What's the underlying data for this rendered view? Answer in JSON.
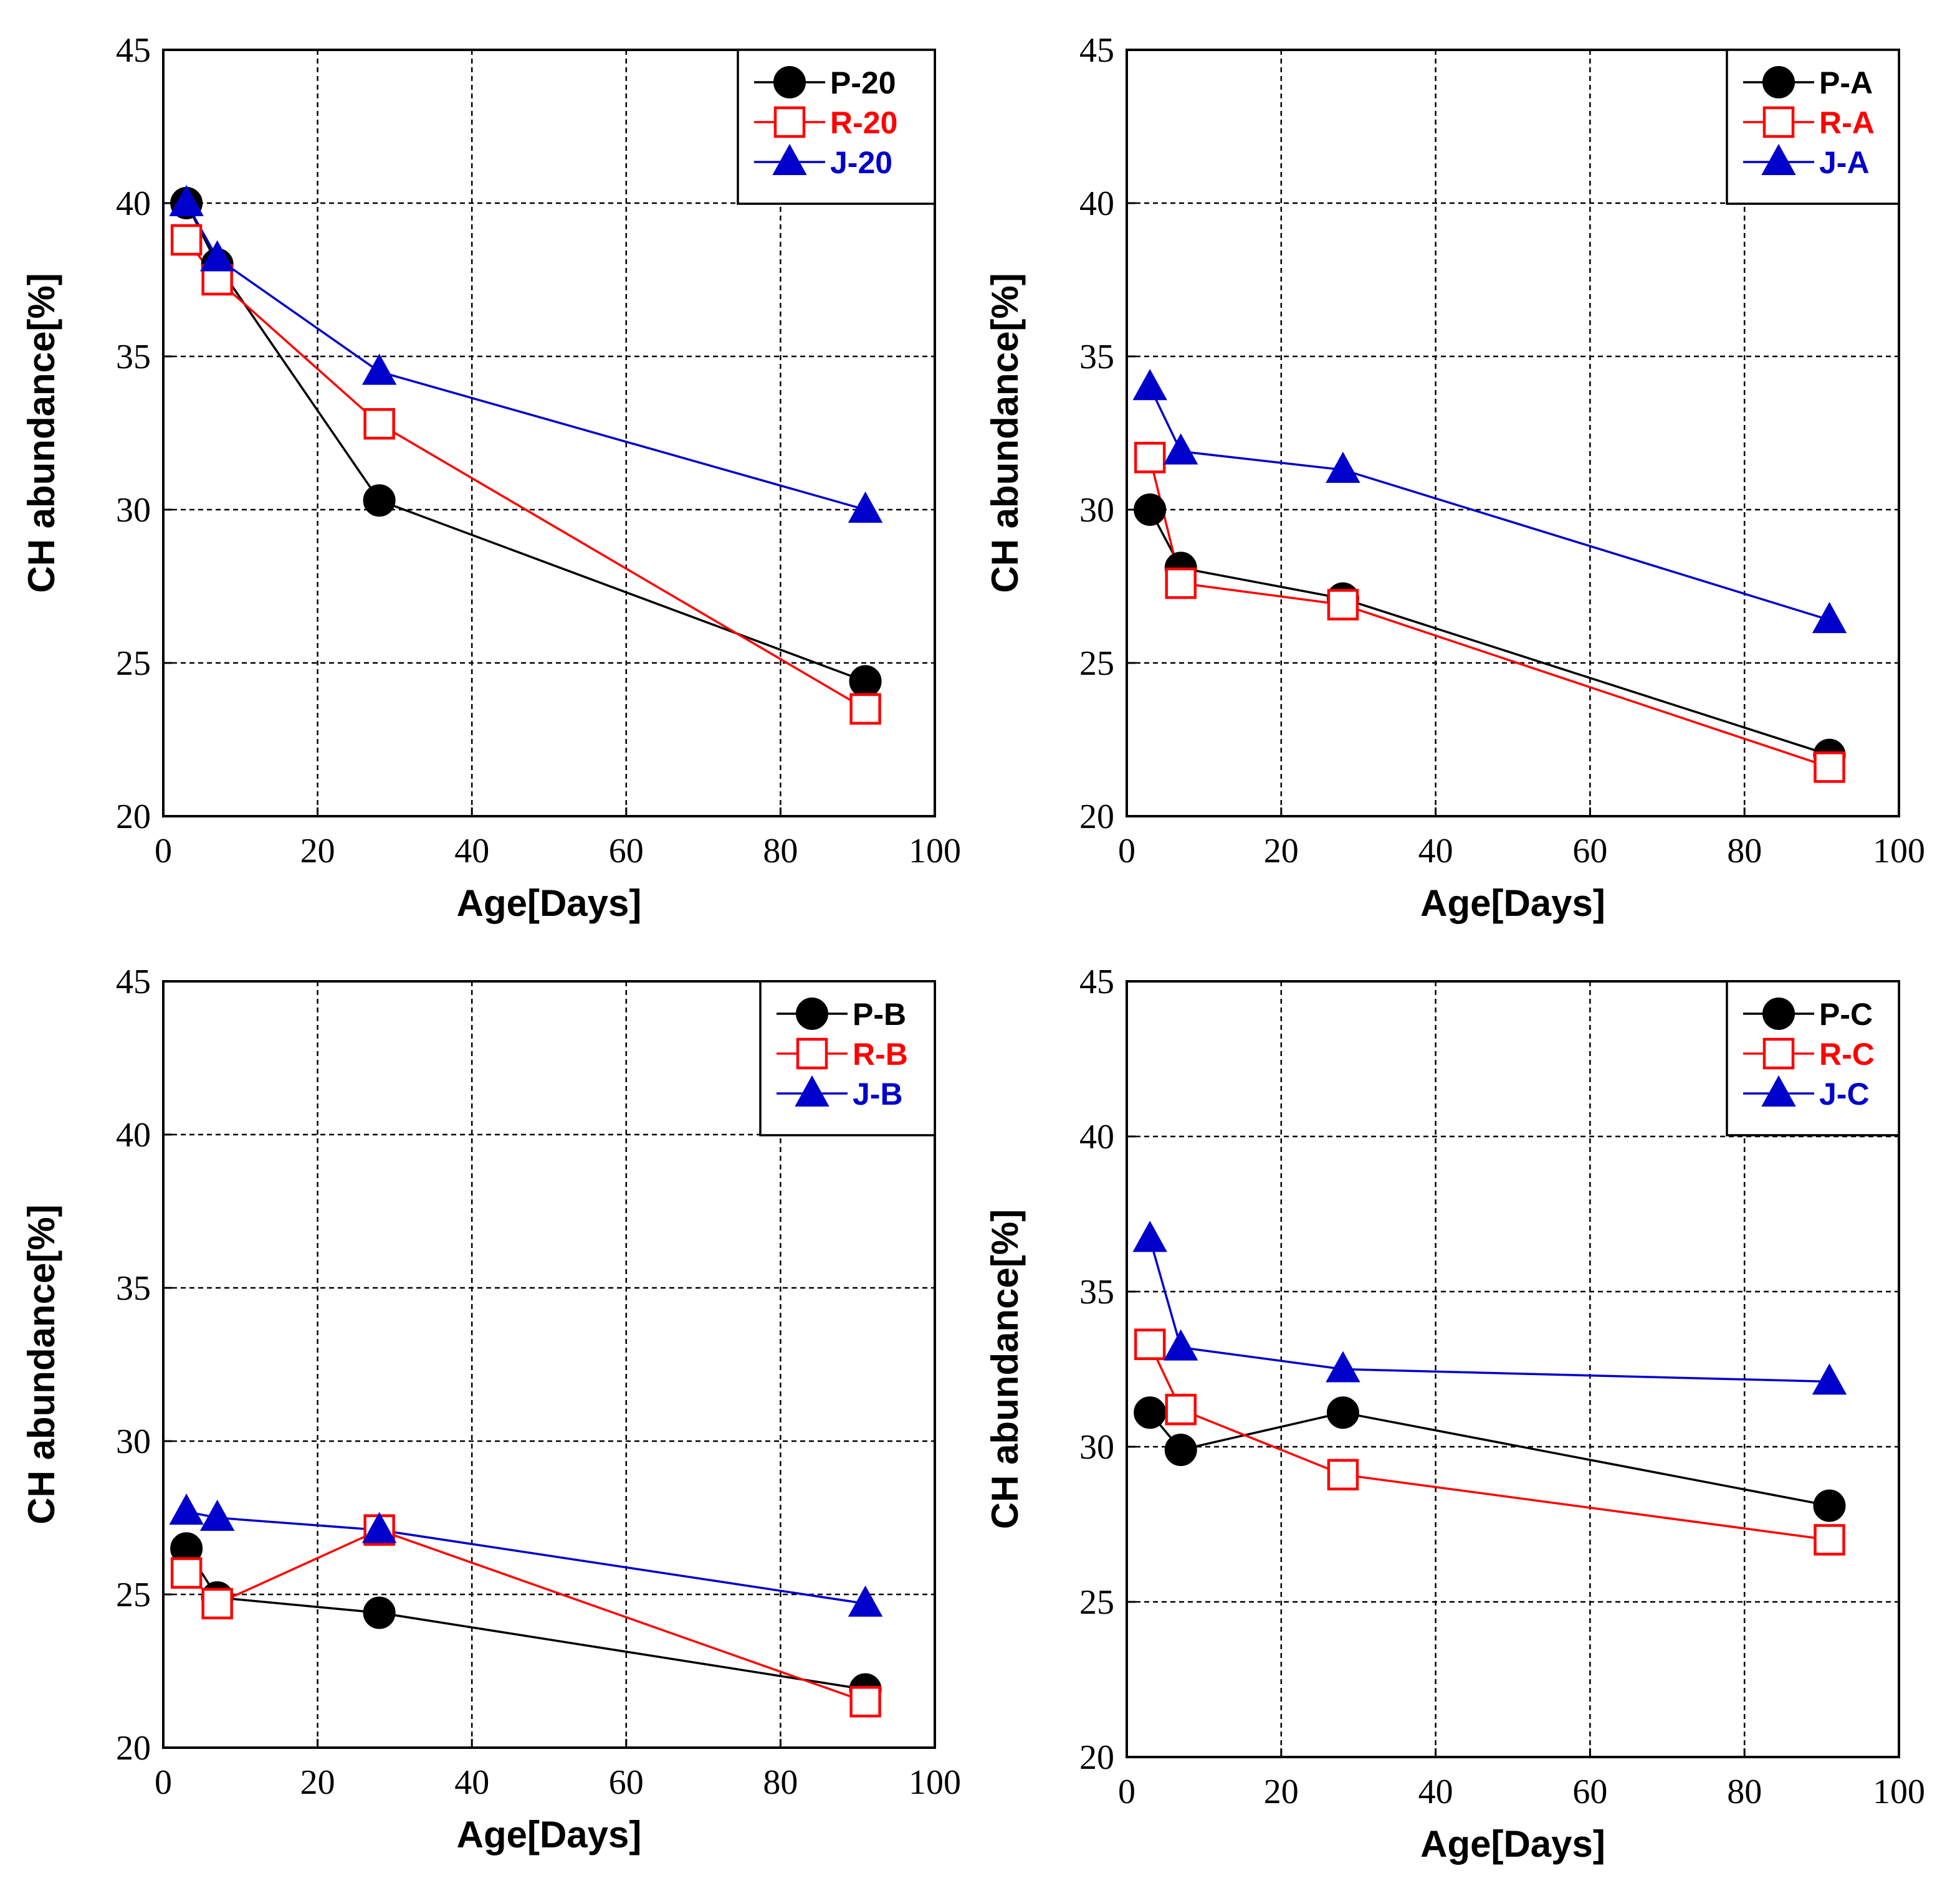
{
  "chart_data": [
    {
      "type": "line",
      "xlabel": "Age[Days]",
      "ylabel": "CH abundance[%]",
      "xlim": [
        0,
        100
      ],
      "ylim": [
        20,
        45
      ],
      "xticks": [
        0,
        20,
        40,
        60,
        80,
        100
      ],
      "yticks": [
        20,
        25,
        30,
        35,
        40,
        45
      ],
      "grid": true,
      "legend_position": "top-right",
      "x": [
        3,
        7,
        28,
        91
      ],
      "series": [
        {
          "name": "P-20",
          "color": "#000000",
          "marker": "circle",
          "values": [
            40.0,
            38.0,
            30.3,
            24.4
          ]
        },
        {
          "name": "R-20",
          "color": "#ff0000",
          "marker": "square",
          "values": [
            38.8,
            37.5,
            32.8,
            23.5
          ]
        },
        {
          "name": "J-20",
          "color": "#0000cc",
          "marker": "triangle",
          "values": [
            40.0,
            38.2,
            34.5,
            30.0
          ]
        }
      ]
    },
    {
      "type": "line",
      "xlabel": "Age[Days]",
      "ylabel": "CH abundance[%]",
      "xlim": [
        0,
        100
      ],
      "ylim": [
        20,
        45
      ],
      "xticks": [
        0,
        20,
        40,
        60,
        80,
        100
      ],
      "yticks": [
        20,
        25,
        30,
        35,
        40,
        45
      ],
      "grid": true,
      "legend_position": "top-right",
      "x": [
        3,
        7,
        28,
        91
      ],
      "series": [
        {
          "name": "P-A",
          "color": "#000000",
          "marker": "circle",
          "values": [
            30.0,
            28.1,
            27.1,
            22.0
          ]
        },
        {
          "name": "R-A",
          "color": "#ff0000",
          "marker": "square",
          "values": [
            31.7,
            27.6,
            26.9,
            21.6
          ]
        },
        {
          "name": "J-A",
          "color": "#0000cc",
          "marker": "triangle",
          "values": [
            34.0,
            31.9,
            31.3,
            26.4
          ]
        }
      ]
    },
    {
      "type": "line",
      "xlabel": "Age[Days]",
      "ylabel": "CH abundance[%]",
      "xlim": [
        0,
        100
      ],
      "ylim": [
        20,
        45
      ],
      "xticks": [
        0,
        20,
        40,
        60,
        80,
        100
      ],
      "yticks": [
        20,
        25,
        30,
        35,
        40,
        45
      ],
      "grid": true,
      "legend_position": "top-right",
      "x": [
        3,
        7,
        28,
        91
      ],
      "series": [
        {
          "name": "P-B",
          "color": "#000000",
          "marker": "circle",
          "values": [
            26.5,
            24.9,
            24.4,
            21.9
          ]
        },
        {
          "name": "R-B",
          "color": "#ff0000",
          "marker": "square",
          "values": [
            25.7,
            24.7,
            27.1,
            21.5
          ]
        },
        {
          "name": "J-B",
          "color": "#0000cc",
          "marker": "triangle",
          "values": [
            27.7,
            27.5,
            27.1,
            24.7
          ]
        }
      ]
    },
    {
      "type": "line",
      "xlabel": "Age[Days]",
      "ylabel": "CH abundance[%]",
      "xlim": [
        0,
        100
      ],
      "ylim": [
        20,
        45
      ],
      "xticks": [
        0,
        20,
        40,
        60,
        80,
        100
      ],
      "yticks": [
        20,
        25,
        30,
        35,
        40,
        45
      ],
      "grid": true,
      "legend_position": "top-right",
      "x": [
        3,
        7,
        28,
        91
      ],
      "series": [
        {
          "name": "P-C",
          "color": "#000000",
          "marker": "circle",
          "values": [
            31.1,
            29.9,
            31.1,
            28.1
          ]
        },
        {
          "name": "R-C",
          "color": "#ff0000",
          "marker": "square",
          "values": [
            33.3,
            31.2,
            29.1,
            27.0
          ]
        },
        {
          "name": "J-C",
          "color": "#0000cc",
          "marker": "triangle",
          "values": [
            36.7,
            33.2,
            32.5,
            32.1
          ]
        }
      ]
    }
  ]
}
